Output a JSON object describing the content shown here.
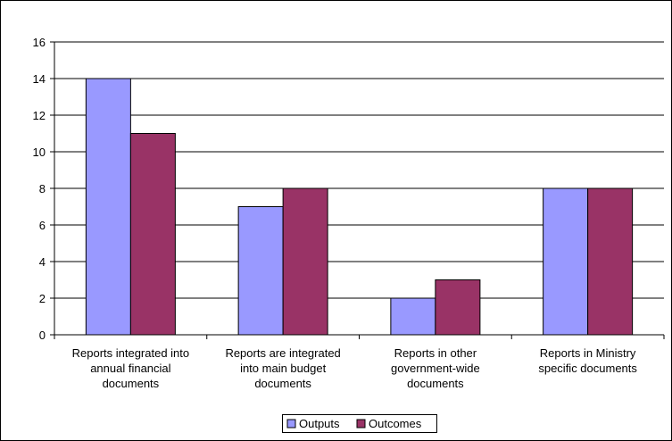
{
  "chart_data": {
    "type": "bar",
    "title": "",
    "xlabel": "",
    "ylabel": "",
    "ylim": [
      0,
      16
    ],
    "yticks": [
      0,
      2,
      4,
      6,
      8,
      10,
      12,
      14,
      16
    ],
    "grid": true,
    "legend_position": "bottom",
    "categories": [
      [
        "Reports integrated into",
        "annual financial",
        "documents"
      ],
      [
        "Reports are integrated",
        "into main budget",
        "documents"
      ],
      [
        "Reports in other",
        "government-wide",
        "documents"
      ],
      [
        "Reports in Ministry",
        "specific documents"
      ]
    ],
    "series": [
      {
        "name": "Outputs",
        "color": "#9999ff",
        "values": [
          14,
          7,
          2,
          8
        ]
      },
      {
        "name": "Outcomes",
        "color": "#993366",
        "values": [
          11,
          8,
          3,
          8
        ]
      }
    ]
  }
}
